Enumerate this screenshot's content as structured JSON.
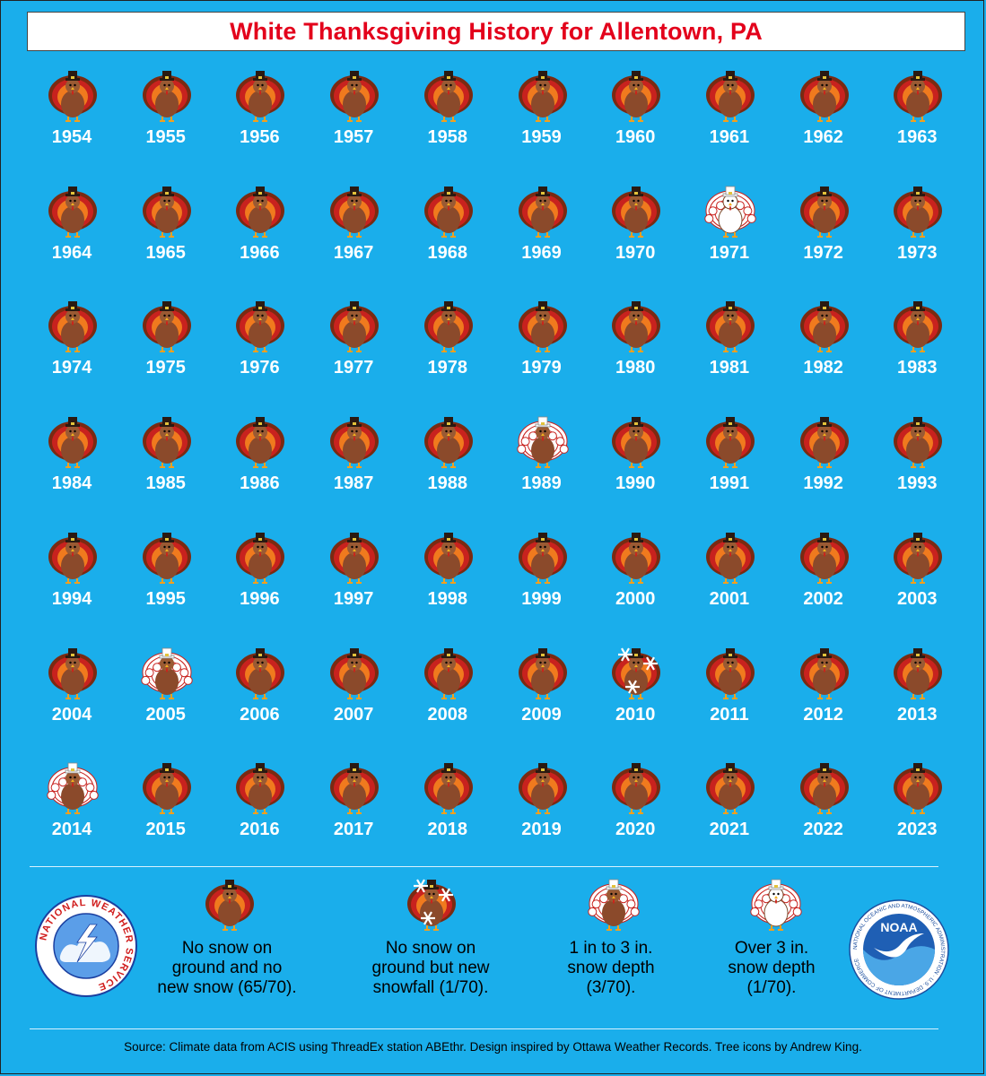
{
  "title": "White Thanksgiving History for Allentown, PA",
  "colors": {
    "background": "#1aaeeb",
    "title": "#e3001b",
    "turkey_body": "#8b4a2b",
    "feather_red": "#c8221e",
    "feather_orange": "#f07a1e",
    "feather_dark": "#7a2a12",
    "hat": "#2a1a12",
    "snow": "#ffffff"
  },
  "chart_data": {
    "type": "table",
    "categories_key": {
      "none": "No snow on ground and no new snow",
      "new_snow": "No snow on ground but new snowfall",
      "depth_1_3": "1 in to 3 in. snow depth",
      "depth_over_3": "Over 3 in. snow depth"
    },
    "years": [
      {
        "year": "1954",
        "status": "none"
      },
      {
        "year": "1955",
        "status": "none"
      },
      {
        "year": "1956",
        "status": "none"
      },
      {
        "year": "1957",
        "status": "none"
      },
      {
        "year": "1958",
        "status": "none"
      },
      {
        "year": "1959",
        "status": "none"
      },
      {
        "year": "1960",
        "status": "none"
      },
      {
        "year": "1961",
        "status": "none"
      },
      {
        "year": "1962",
        "status": "none"
      },
      {
        "year": "1963",
        "status": "none"
      },
      {
        "year": "1964",
        "status": "none"
      },
      {
        "year": "1965",
        "status": "none"
      },
      {
        "year": "1966",
        "status": "none"
      },
      {
        "year": "1967",
        "status": "none"
      },
      {
        "year": "1968",
        "status": "none"
      },
      {
        "year": "1969",
        "status": "none"
      },
      {
        "year": "1970",
        "status": "none"
      },
      {
        "year": "1971",
        "status": "depth_over_3"
      },
      {
        "year": "1972",
        "status": "none"
      },
      {
        "year": "1973",
        "status": "none"
      },
      {
        "year": "1974",
        "status": "none"
      },
      {
        "year": "1975",
        "status": "none"
      },
      {
        "year": "1976",
        "status": "none"
      },
      {
        "year": "1977",
        "status": "none"
      },
      {
        "year": "1978",
        "status": "none"
      },
      {
        "year": "1979",
        "status": "none"
      },
      {
        "year": "1980",
        "status": "none"
      },
      {
        "year": "1981",
        "status": "none"
      },
      {
        "year": "1982",
        "status": "none"
      },
      {
        "year": "1983",
        "status": "none"
      },
      {
        "year": "1984",
        "status": "none"
      },
      {
        "year": "1985",
        "status": "none"
      },
      {
        "year": "1986",
        "status": "none"
      },
      {
        "year": "1987",
        "status": "none"
      },
      {
        "year": "1988",
        "status": "none"
      },
      {
        "year": "1989",
        "status": "depth_1_3"
      },
      {
        "year": "1990",
        "status": "none"
      },
      {
        "year": "1991",
        "status": "none"
      },
      {
        "year": "1992",
        "status": "none"
      },
      {
        "year": "1993",
        "status": "none"
      },
      {
        "year": "1994",
        "status": "none"
      },
      {
        "year": "1995",
        "status": "none"
      },
      {
        "year": "1996",
        "status": "none"
      },
      {
        "year": "1997",
        "status": "none"
      },
      {
        "year": "1998",
        "status": "none"
      },
      {
        "year": "1999",
        "status": "none"
      },
      {
        "year": "2000",
        "status": "none"
      },
      {
        "year": "2001",
        "status": "none"
      },
      {
        "year": "2002",
        "status": "none"
      },
      {
        "year": "2003",
        "status": "none"
      },
      {
        "year": "2004",
        "status": "none"
      },
      {
        "year": "2005",
        "status": "depth_1_3"
      },
      {
        "year": "2006",
        "status": "none"
      },
      {
        "year": "2007",
        "status": "none"
      },
      {
        "year": "2008",
        "status": "none"
      },
      {
        "year": "2009",
        "status": "none"
      },
      {
        "year": "2010",
        "status": "new_snow"
      },
      {
        "year": "2011",
        "status": "none"
      },
      {
        "year": "2012",
        "status": "none"
      },
      {
        "year": "2013",
        "status": "none"
      },
      {
        "year": "2014",
        "status": "depth_1_3"
      },
      {
        "year": "2015",
        "status": "none"
      },
      {
        "year": "2016",
        "status": "none"
      },
      {
        "year": "2017",
        "status": "none"
      },
      {
        "year": "2018",
        "status": "none"
      },
      {
        "year": "2019",
        "status": "none"
      },
      {
        "year": "2020",
        "status": "none"
      },
      {
        "year": "2021",
        "status": "none"
      },
      {
        "year": "2022",
        "status": "none"
      },
      {
        "year": "2023",
        "status": "none"
      }
    ],
    "counts": {
      "none": 65,
      "new_snow": 1,
      "depth_1_3": 3,
      "depth_over_3": 1,
      "total": 70
    }
  },
  "legend": [
    {
      "status": "none",
      "text": "No snow on\nground and no\nnew snow (65/70)."
    },
    {
      "status": "new_snow",
      "text": "No snow on\nground but new\nsnowfall (1/70)."
    },
    {
      "status": "depth_1_3",
      "text": "1 in to 3 in.\nsnow depth\n(3/70)."
    },
    {
      "status": "depth_over_3",
      "text": "Over 3 in.\nsnow depth\n(1/70)."
    }
  ],
  "logos": {
    "nws_text": "NATIONAL WEATHER SERVICE",
    "noaa_label": "NOAA",
    "noaa_ring_text": "NATIONAL OCEANIC AND ATMOSPHERIC ADMINISTRATION · U.S. DEPARTMENT OF COMMERCE"
  },
  "source": "Source: Climate data from ACIS using ThreadEx station ABEthr. Design inspired by Ottawa Weather Records. Tree icons by Andrew King."
}
